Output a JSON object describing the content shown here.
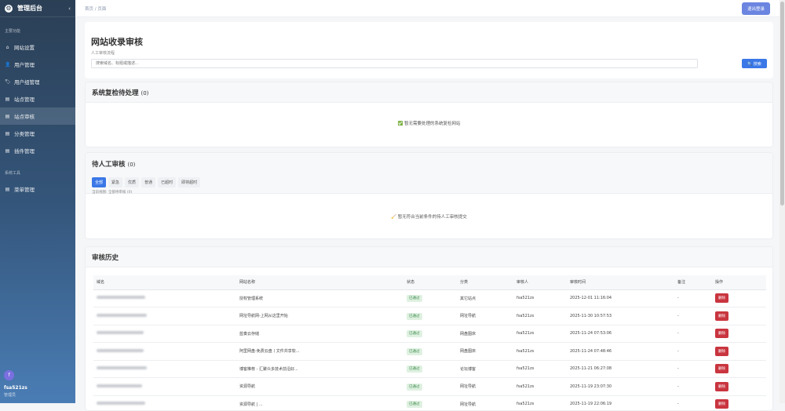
{
  "sidebar": {
    "title": "管理后台",
    "collapse_icon": "chevron-left-icon",
    "section_main": "主要功能",
    "section_tools": "系统工具",
    "items": [
      {
        "label": "网站设置",
        "icon": "home-icon"
      },
      {
        "label": "用户管理",
        "icon": "user-icon"
      },
      {
        "label": "用户组管理",
        "icon": "tag-icon"
      },
      {
        "label": "站点管理",
        "icon": "document-icon"
      },
      {
        "label": "站点审核",
        "icon": "document-icon",
        "active": true
      },
      {
        "label": "分类管理",
        "icon": "document-icon"
      },
      {
        "label": "插件管理",
        "icon": "document-icon"
      }
    ],
    "tools": [
      {
        "label": "菜单管理",
        "icon": "document-icon"
      }
    ],
    "user": {
      "avatar": "f",
      "name": "fsa521zs",
      "role": "管理员"
    }
  },
  "topbar": {
    "breadcrumb": "首页 / 页面",
    "logout_label": "退出登录"
  },
  "header": {
    "title": "网站收录审核",
    "subtitle": "人工审核流程",
    "search_placeholder": "搜索域名、标题或描述...",
    "search_label": "搜索"
  },
  "system_recheck": {
    "title": "系统复检待处理",
    "count": "(0)",
    "empty": "暂无需要处理的系统复检网站"
  },
  "manual": {
    "title": "待人工审核",
    "count": "(0)",
    "filters": [
      "全部",
      "紧急",
      "优质",
      "普通",
      "已超时",
      "即将超时"
    ],
    "active_filter": "全部",
    "view_note": "当前视图: 全部待审核 (0)",
    "empty": "暂无符合当前条件的待人工审核提交"
  },
  "history": {
    "title": "审核历史",
    "columns": [
      "域名",
      "网站名称",
      "状态",
      "分类",
      "审核人",
      "审核时间",
      "备注",
      "操作"
    ],
    "rows": [
      {
        "name": "授权管理系统",
        "status": "已通过",
        "category": "其它站点",
        "reviewer": "fsa521zs",
        "time": "2025-12-01 11:16:04",
        "note": "-",
        "action": "删除"
      },
      {
        "name": "网址导航网-上网从这里开始",
        "status": "已通过",
        "category": "网址导航",
        "reviewer": "fsa521zs",
        "time": "2025-11-30 10:57:53",
        "note": "-",
        "action": "删除"
      },
      {
        "name": "蓝奏云存储",
        "status": "已通过",
        "category": "网盘图床",
        "reviewer": "fsa521zs",
        "time": "2025-11-24 07:53:06",
        "note": "-",
        "action": "删除"
      },
      {
        "name": "阿里网盘-免费云盘丨文件共享软...",
        "status": "已通过",
        "category": "网盘图床",
        "reviewer": "fsa521zs",
        "time": "2025-11-24 07:48:46",
        "note": "-",
        "action": "删除"
      },
      {
        "name": "博客推荐 - 汇聚众多技术前沿好...",
        "status": "已通过",
        "category": "论坛博客",
        "reviewer": "fsa521zs",
        "time": "2025-11-21 06:27:08",
        "note": "-",
        "action": "删除"
      },
      {
        "name": "资源导航",
        "status": "已通过",
        "category": "网址导航",
        "reviewer": "fsa521zs",
        "time": "2025-11-19 23:07:30",
        "note": "-",
        "action": "删除"
      },
      {
        "name": "资源导航 | ...",
        "status": "已通过",
        "category": "网址导航",
        "reviewer": "fsa521zs",
        "time": "2025-11-19 22:06:19",
        "note": "-",
        "action": "删除"
      }
    ]
  },
  "colors": {
    "accent": "#3b78e7",
    "danger": "#c9353f",
    "success_bg": "#dff1e1"
  }
}
